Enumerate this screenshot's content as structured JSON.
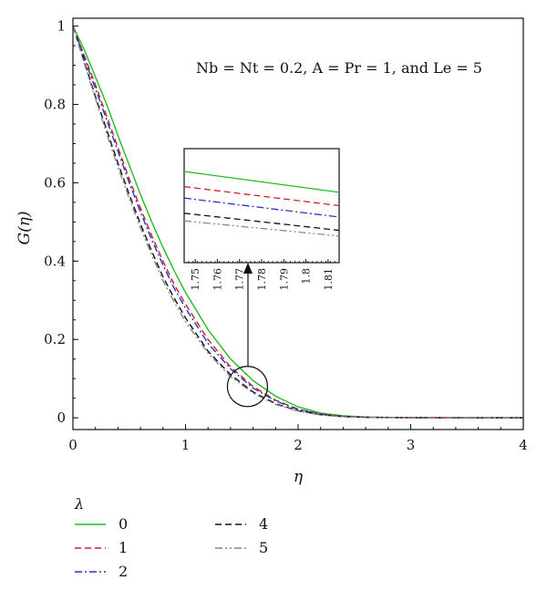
{
  "chart_data": {
    "type": "line",
    "annotation": "Nb = Nt = 0.2, A = Pr = 1, and Le = 5",
    "xlabel": "η",
    "ylabel": "G(η)",
    "xlim": [
      0,
      4
    ],
    "ylim": [
      -0.03,
      1.02
    ],
    "xticks": [
      "0",
      "1",
      "2",
      "3",
      "4"
    ],
    "yticks": [
      "0",
      "0.2",
      "0.4",
      "0.6",
      "0.8",
      "1"
    ],
    "grid": false,
    "legend": {
      "title": "λ",
      "placement": "bottom-left, below plot"
    },
    "x": [
      0,
      0.1,
      0.2,
      0.3,
      0.4,
      0.5,
      0.6,
      0.7,
      0.8,
      0.9,
      1.0,
      1.2,
      1.4,
      1.6,
      1.8,
      2.0,
      2.2,
      2.4,
      2.6,
      2.8,
      3.0,
      3.5,
      4.0
    ],
    "series": [
      {
        "name": "0",
        "color": "#22bb22",
        "dash": "solid",
        "values": [
          1.0,
          0.94,
          0.87,
          0.8,
          0.72,
          0.645,
          0.57,
          0.5,
          0.435,
          0.375,
          0.32,
          0.225,
          0.15,
          0.095,
          0.055,
          0.028,
          0.012,
          0.005,
          0.002,
          0.001,
          0.0005,
          0.0001,
          0.0
        ]
      },
      {
        "name": "1",
        "color": "#cc2222",
        "dash": "dashed",
        "values": [
          1.0,
          0.925,
          0.85,
          0.77,
          0.69,
          0.61,
          0.535,
          0.465,
          0.4,
          0.34,
          0.29,
          0.2,
          0.13,
          0.08,
          0.045,
          0.022,
          0.01,
          0.004,
          0.0015,
          0.0008,
          0.0004,
          0.0001,
          0.0
        ]
      },
      {
        "name": "2",
        "color": "#2233cc",
        "dash": "dashdot",
        "values": [
          1.0,
          0.92,
          0.84,
          0.76,
          0.68,
          0.6,
          0.525,
          0.455,
          0.39,
          0.33,
          0.28,
          0.19,
          0.125,
          0.076,
          0.043,
          0.021,
          0.009,
          0.0035,
          0.0013,
          0.0007,
          0.0003,
          0.0001,
          0.0
        ]
      },
      {
        "name": "4",
        "color": "#111111",
        "dash": "dashed",
        "values": [
          1.0,
          0.91,
          0.82,
          0.735,
          0.65,
          0.57,
          0.495,
          0.425,
          0.36,
          0.305,
          0.255,
          0.17,
          0.11,
          0.066,
          0.036,
          0.018,
          0.008,
          0.003,
          0.0012,
          0.0006,
          0.0003,
          0.0001,
          0.0
        ]
      },
      {
        "name": "5",
        "color": "#888888",
        "dash": "dashdotdot",
        "values": [
          1.0,
          0.905,
          0.815,
          0.725,
          0.64,
          0.56,
          0.485,
          0.415,
          0.35,
          0.295,
          0.245,
          0.165,
          0.105,
          0.063,
          0.034,
          0.017,
          0.007,
          0.0028,
          0.0011,
          0.0005,
          0.0002,
          0.0001,
          0.0
        ]
      }
    ],
    "zoom_region": {
      "x": 1.55,
      "y": 0.08
    },
    "inset": {
      "xlim": [
        1.745,
        1.815
      ],
      "xticks": [
        "1.75",
        "1.76",
        "1.77",
        "1.78",
        "1.79",
        "1.8",
        "1.81"
      ],
      "x": [
        1.745,
        1.815
      ],
      "series_values": [
        [
          0.064,
          0.0585
        ],
        [
          0.06,
          0.055
        ],
        [
          0.057,
          0.052
        ],
        [
          0.053,
          0.0485
        ],
        [
          0.051,
          0.047
        ]
      ],
      "ylim": [
        0.04,
        0.07
      ]
    }
  }
}
